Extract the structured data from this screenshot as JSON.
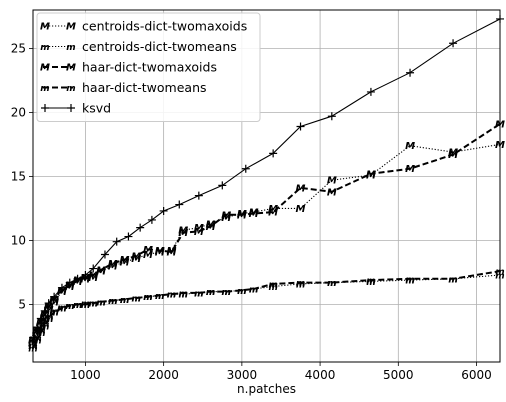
{
  "chart_data": {
    "type": "line",
    "title": "",
    "xlabel": "n.patches",
    "ylabel": "",
    "xlim": [
      330,
      6300
    ],
    "ylim": [
      0.5,
      28
    ],
    "xticks": [
      1000,
      2000,
      3000,
      4000,
      5000,
      6000
    ],
    "yticks": [
      5,
      10,
      15,
      20,
      25
    ],
    "grid": true,
    "legend_position": "top-left",
    "series": [
      {
        "name": "centroids-dict-twomaxoids",
        "style": "dotted",
        "marker": "M",
        "x": [
          330,
          380,
          430,
          480,
          530,
          600,
          700,
          800,
          900,
          1000,
          1100,
          1200,
          1350,
          1500,
          1650,
          1800,
          1950,
          2100,
          2250,
          2450,
          2600,
          2800,
          3000,
          3150,
          3400,
          3750,
          4150,
          4650,
          5150,
          5700,
          6300
        ],
        "y": [
          2.0,
          2.8,
          3.4,
          3.9,
          4.6,
          5.2,
          6.0,
          6.4,
          6.8,
          7.0,
          7.1,
          7.6,
          8.0,
          8.3,
          8.6,
          8.9,
          9.1,
          9.2,
          10.8,
          11.0,
          11.3,
          11.8,
          12.1,
          12.2,
          12.5,
          12.5,
          14.7,
          15.1,
          17.4,
          16.9,
          17.5
        ]
      },
      {
        "name": "centroids-dict-twomeans",
        "style": "dotted",
        "marker": "m",
        "x": [
          330,
          380,
          430,
          480,
          530,
          600,
          700,
          800,
          900,
          1000,
          1100,
          1200,
          1350,
          1500,
          1650,
          1800,
          1950,
          2100,
          2250,
          2450,
          2600,
          2800,
          3000,
          3150,
          3400,
          3750,
          4150,
          4650,
          5150,
          5700,
          6300
        ],
        "y": [
          1.8,
          2.4,
          3.0,
          3.5,
          4.0,
          4.5,
          4.8,
          4.9,
          5.0,
          5.1,
          5.1,
          5.2,
          5.3,
          5.4,
          5.5,
          5.6,
          5.7,
          5.8,
          5.8,
          5.9,
          6.0,
          6.0,
          6.1,
          6.2,
          6.4,
          6.6,
          6.7,
          6.8,
          6.9,
          7.0,
          7.3
        ]
      },
      {
        "name": "haar-dict-twomaxoids",
        "style": "dashed",
        "marker": "M",
        "x": [
          330,
          380,
          430,
          480,
          530,
          600,
          700,
          800,
          900,
          1000,
          1100,
          1200,
          1350,
          1500,
          1650,
          1800,
          1950,
          2100,
          2250,
          2450,
          2600,
          2800,
          3000,
          3150,
          3400,
          3750,
          4150,
          4650,
          5150,
          5700,
          6300
        ],
        "y": [
          2.2,
          3.0,
          3.6,
          4.2,
          4.8,
          5.4,
          6.1,
          6.5,
          6.9,
          7.1,
          7.3,
          7.7,
          8.2,
          8.5,
          8.8,
          9.3,
          9.2,
          9.1,
          10.6,
          10.7,
          11.1,
          12.0,
          12.0,
          12.1,
          12.2,
          14.1,
          13.8,
          15.2,
          15.6,
          16.7,
          19.1
        ]
      },
      {
        "name": "haar-dict-twomeans",
        "style": "dashed",
        "marker": "m",
        "x": [
          330,
          380,
          430,
          480,
          530,
          600,
          700,
          800,
          900,
          1000,
          1100,
          1200,
          1350,
          1500,
          1650,
          1800,
          1950,
          2100,
          2250,
          2450,
          2600,
          2800,
          3000,
          3150,
          3400,
          3750,
          4150,
          4650,
          5150,
          5700,
          6300
        ],
        "y": [
          1.6,
          2.2,
          2.8,
          3.3,
          3.9,
          4.4,
          4.7,
          4.9,
          5.0,
          5.0,
          5.1,
          5.2,
          5.3,
          5.4,
          5.5,
          5.6,
          5.7,
          5.8,
          5.9,
          5.9,
          6.0,
          6.0,
          6.1,
          6.2,
          6.6,
          6.7,
          6.7,
          6.9,
          7.0,
          7.0,
          7.6
        ]
      },
      {
        "name": "ksvd",
        "style": "solid",
        "marker": "+",
        "x": [
          330,
          380,
          430,
          480,
          530,
          600,
          700,
          800,
          900,
          1000,
          1100,
          1250,
          1400,
          1550,
          1700,
          1850,
          2000,
          2200,
          2450,
          2750,
          3050,
          3400,
          3750,
          4150,
          4650,
          5150,
          5700,
          6300
        ],
        "y": [
          2.4,
          3.2,
          3.9,
          4.5,
          5.1,
          5.6,
          6.3,
          6.7,
          7.0,
          7.3,
          7.8,
          8.9,
          9.9,
          10.3,
          11.0,
          11.6,
          12.3,
          12.8,
          13.5,
          14.3,
          15.6,
          16.8,
          18.9,
          19.7,
          21.6,
          23.1,
          25.4,
          27.3
        ]
      }
    ]
  }
}
